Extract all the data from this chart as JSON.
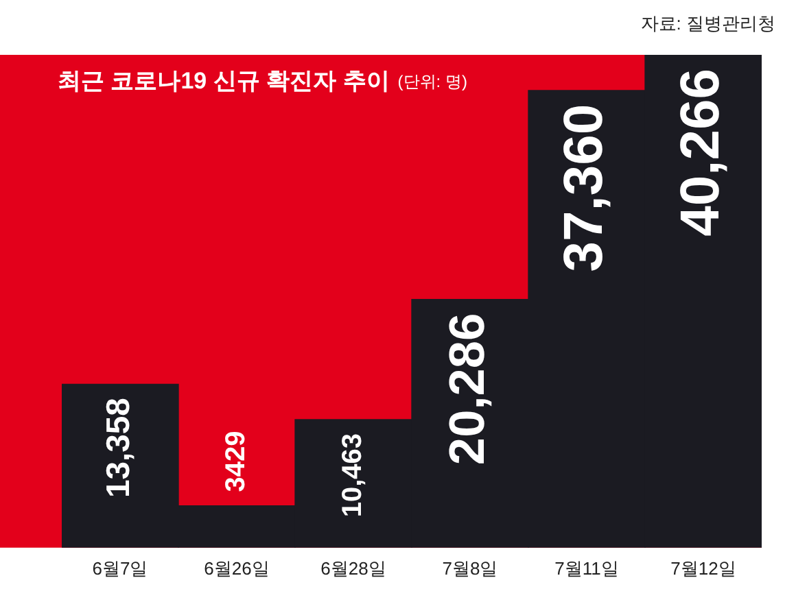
{
  "chart_data": {
    "type": "bar",
    "title": "최근 코로나19 신규 확진자 추이",
    "subtitle": "(단위: 명)",
    "categories": [
      "6월7일",
      "6월26일",
      "6월28일",
      "7월8일",
      "7월11일",
      "7월12일"
    ],
    "values": [
      13358,
      3429,
      10463,
      20286,
      37360,
      40266
    ],
    "value_labels": [
      "13,358",
      "3429",
      "10,463",
      "20,286",
      "37,360",
      "40,266"
    ],
    "color": "#1b1b22",
    "annotations": [
      "자료: 질병관리청"
    ],
    "grid": false,
    "legend": false
  }
}
